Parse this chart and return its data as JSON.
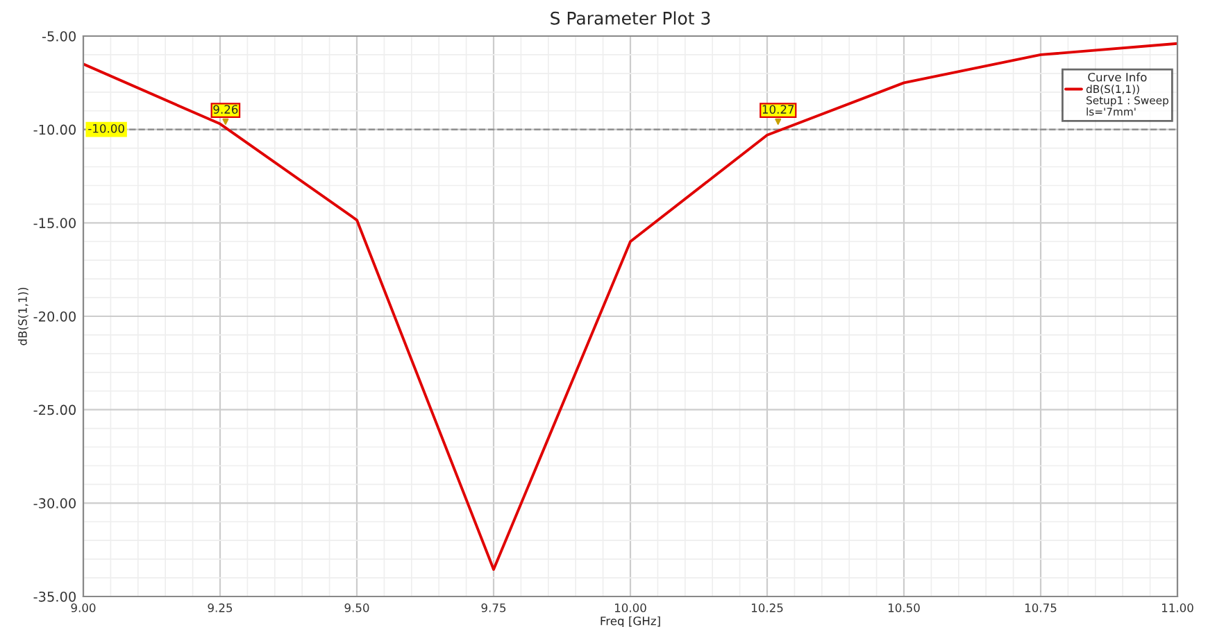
{
  "chart_data": {
    "type": "line",
    "title": "S Parameter Plot 3",
    "xlabel": "Freq [GHz]",
    "ylabel": "dB(S(1,1))",
    "legend_title": "Curve Info",
    "x": [
      9.0,
      9.25,
      9.5,
      9.75,
      10.0,
      10.25,
      10.5,
      10.75,
      11.0
    ],
    "series": [
      {
        "name": "dB(S(1,1))",
        "color": "#e00000",
        "values": [
          -6.5,
          -9.7,
          -14.85,
          -33.55,
          -16.0,
          -10.3,
          -7.5,
          -6.0,
          -5.4
        ]
      }
    ],
    "xlim": [
      9.0,
      11.0
    ],
    "ylim": [
      -35.0,
      -5.0
    ],
    "xticks": [
      {
        "value": 9.0,
        "label": "9.00"
      },
      {
        "value": 9.25,
        "label": "9.25"
      },
      {
        "value": 9.5,
        "label": "9.50"
      },
      {
        "value": 9.75,
        "label": "9.75"
      },
      {
        "value": 10.0,
        "label": "10.00"
      },
      {
        "value": 10.25,
        "label": "10.25"
      },
      {
        "value": 10.5,
        "label": "10.50"
      },
      {
        "value": 10.75,
        "label": "10.75"
      },
      {
        "value": 11.0,
        "label": "11.00"
      }
    ],
    "yticks": [
      {
        "value": -35,
        "label": "-35.00"
      },
      {
        "value": -30,
        "label": "-30.00"
      },
      {
        "value": -25,
        "label": "-25.00"
      },
      {
        "value": -20,
        "label": "-20.00"
      },
      {
        "value": -15,
        "label": "-15.00"
      },
      {
        "value": -10,
        "label": "-10.00"
      },
      {
        "value": -5,
        "label": "-5.00"
      }
    ],
    "ref_lines": [
      {
        "axis": "y",
        "value": -10,
        "label": "-10.00",
        "color": "#909090",
        "line_style": "dashed"
      }
    ],
    "annotations": [
      "Setup1 : Sweep",
      "ls='7mm'",
      {
        "text": "9.26",
        "x": 9.26,
        "y": -10
      },
      {
        "text": "10.27",
        "x": 10.27,
        "y": -10
      }
    ],
    "grid": true,
    "legend": "top right",
    "marker": "none",
    "line_style": "solid"
  }
}
